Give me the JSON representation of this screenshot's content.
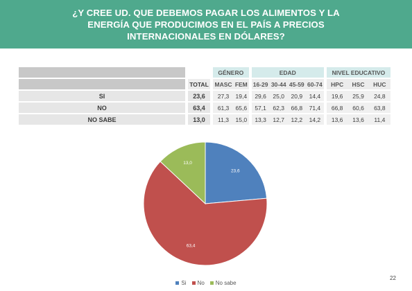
{
  "header": {
    "title": "¿Y CREE UD. QUE DEBEMOS PAGAR LOS ALIMENTOS Y LA ENERGÍA QUE PRODUCIMOS EN EL PAÍS A PRECIOS INTERNACIONALES EN DÓLARES?",
    "color": "#4fa98d"
  },
  "table": {
    "groups": {
      "genero": "GÉNERO",
      "edad": "EDAD",
      "nivel": "NIVEL EDUCATIVO"
    },
    "columns": [
      "MASC",
      "FEM",
      "16-29",
      "30-44",
      "45-59",
      "60-74",
      "HPC",
      "HSC",
      "HUC"
    ],
    "total_label": "TOTAL",
    "rows": [
      {
        "label": "SI",
        "total": "23,6",
        "values": [
          "27,3",
          "19,4",
          "29,6",
          "25,0",
          "20,9",
          "14,4",
          "19,6",
          "25,9",
          "24,8"
        ]
      },
      {
        "label": "NO",
        "total": "63,4",
        "values": [
          "61,3",
          "65,6",
          "57,1",
          "62,3",
          "66,8",
          "71,4",
          "66,8",
          "60,6",
          "63,8"
        ]
      },
      {
        "label": "NO SABE",
        "total": "13,0",
        "values": [
          "11,3",
          "15,0",
          "13,3",
          "12,7",
          "12,2",
          "14,2",
          "13,6",
          "13,6",
          "11,4"
        ]
      }
    ]
  },
  "chart_data": {
    "type": "pie",
    "categories": [
      "Si",
      "No",
      "No sabe"
    ],
    "values": [
      23.6,
      63.4,
      13.0
    ],
    "data_labels": [
      "23,6",
      "63,4",
      "13,0"
    ],
    "colors": [
      "#4f81bd",
      "#c0504d",
      "#9bbb59"
    ],
    "legend_position": "bottom"
  },
  "page_number": "22"
}
